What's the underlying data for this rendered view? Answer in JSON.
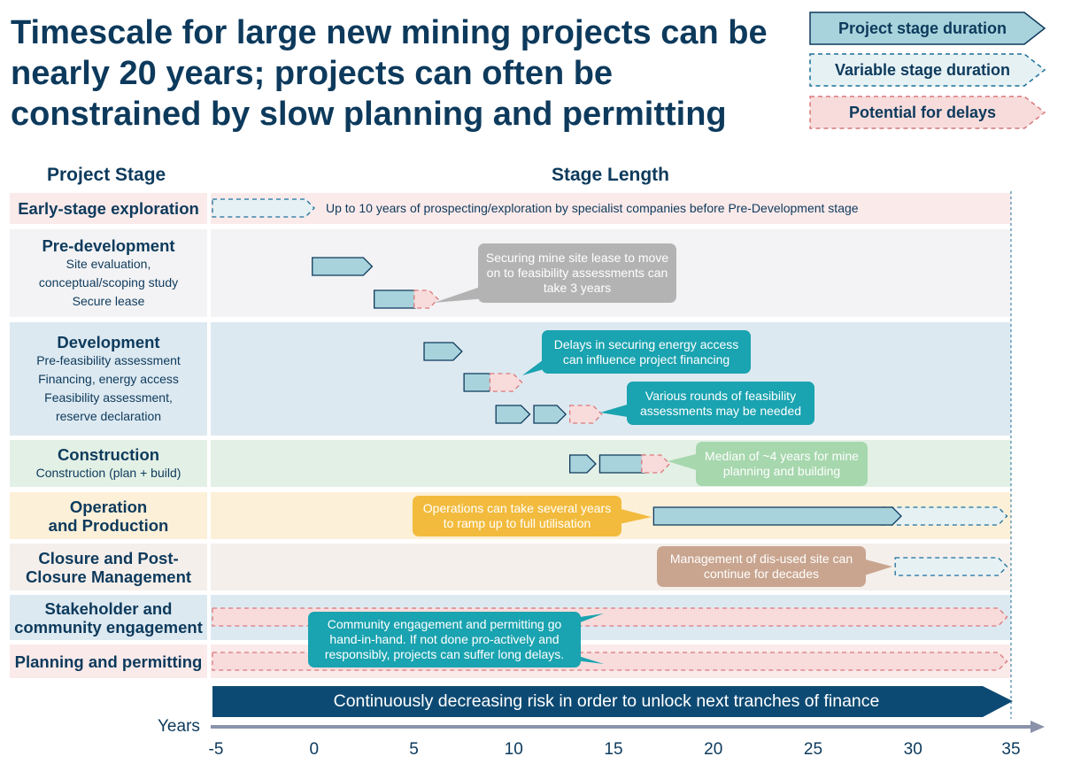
{
  "title": "Timescale for large new mining projects can be nearly 20 years; projects can often be constrained by slow planning and permitting",
  "legend": [
    {
      "label": "Project stage duration",
      "style": "solid",
      "fill": "#a9d3dc",
      "stroke": "#0d3a5c"
    },
    {
      "label": "Variable stage duration",
      "style": "dashed",
      "fill": "#e6f1f4",
      "stroke": "#1a6f9a"
    },
    {
      "label": "Potential for delays",
      "style": "dashed",
      "fill": "#f8dcdc",
      "stroke": "#d9787b"
    }
  ],
  "columns": {
    "stage": "Project Stage",
    "length": "Stage Length"
  },
  "rows": [
    {
      "main": "Early-stage exploration",
      "sub": [],
      "bg": "#fbeaea"
    },
    {
      "main": "Pre-development",
      "sub": [
        "Site evaluation,",
        "conceptual/scoping study",
        "Secure lease"
      ],
      "bg": "#f3f3f5"
    },
    {
      "main": "Development",
      "sub": [
        "Pre-feasibility assessment",
        "Financing, energy access",
        "Feasibility assessment,",
        "reserve declaration"
      ],
      "bg": "#dde9f1"
    },
    {
      "main": "Construction",
      "sub": [
        "Construction (plan + build)"
      ],
      "bg": "#e3f0e5"
    },
    {
      "main": "Operation\nand Production",
      "sub": [],
      "bg": "#fdf0d8"
    },
    {
      "main": "Closure and Post-\nClosure Management",
      "sub": [],
      "bg": "#f5efeb"
    },
    {
      "main": "Stakeholder and\ncommunity engagement",
      "sub": [],
      "bg": "#dde9f1"
    },
    {
      "main": "Planning and permitting",
      "sub": [],
      "bg": "#fbeaea"
    }
  ],
  "exploration_note": "Up to 10 years of prospecting/exploration by specialist companies before Pre-Development stage",
  "bars": [
    {
      "row": 0,
      "type": "variable",
      "start": -5,
      "end": 0.1
    },
    {
      "row": 1,
      "type": "stage",
      "start": 0,
      "end": 3
    },
    {
      "row": 1,
      "type": "stage",
      "start": 3.1,
      "end": 5.6
    },
    {
      "row": 1,
      "type": "delay",
      "start": 5.1,
      "end": 6.3
    },
    {
      "row": 2,
      "type": "stage",
      "start": 5.6,
      "end": 7.5
    },
    {
      "row": 2,
      "type": "stage",
      "start": 7.6,
      "end": 9.3
    },
    {
      "row": 2,
      "type": "delay",
      "start": 8.9,
      "end": 10.5
    },
    {
      "row": 2,
      "type": "stage",
      "start": 9.2,
      "end": 10.9
    },
    {
      "row": 2,
      "type": "stage",
      "start": 11.1,
      "end": 12.7
    },
    {
      "row": 2,
      "type": "delay",
      "start": 12.9,
      "end": 14.5
    },
    {
      "row": 3,
      "type": "stage",
      "start": 12.9,
      "end": 14.2
    },
    {
      "row": 3,
      "type": "stage",
      "start": 14.4,
      "end": 17.1
    },
    {
      "row": 3,
      "type": "delay",
      "start": 16.5,
      "end": 17.9
    },
    {
      "row": 4,
      "type": "variable",
      "start": 28.5,
      "end": 34.8
    },
    {
      "row": 4,
      "type": "stage",
      "start": 17.1,
      "end": 29.5
    },
    {
      "row": 5,
      "type": "variable",
      "start": 29.2,
      "end": 34.8
    },
    {
      "row": 6,
      "type": "delay",
      "start": -5,
      "end": 34.8
    },
    {
      "row": 7,
      "type": "delay",
      "start": -5,
      "end": 34.8
    }
  ],
  "callouts": [
    {
      "text": "Securing mine site lease to move on to feasibility assessments can take 3 years",
      "color": "#b3b3b3"
    },
    {
      "text": "Delays in securing energy access can influence project financing",
      "color": "#1aa3b0"
    },
    {
      "text": "Various rounds of feasibility assessments may be needed",
      "color": "#1aa3b0"
    },
    {
      "text": "Median of ~4 years for mine planning and building",
      "color": "#a6d7ad"
    },
    {
      "text": "Operations can take several years to ramp up to full utilisation",
      "color": "#f2bb3d"
    },
    {
      "text": "Management of dis-used site can continue for decades",
      "color": "#c9a58f"
    },
    {
      "text": "Community engagement and permitting go hand-in-hand. If not done pro-actively and responsibly, projects can suffer long delays.",
      "color": "#1aa3b0"
    }
  ],
  "risk_arrow": {
    "text": "Continuously decreasing risk in order to unlock next tranches of finance",
    "color": "#0d4a73"
  },
  "axis": {
    "label": "Years",
    "ticks": [
      -5,
      0,
      5,
      10,
      15,
      20,
      25,
      30,
      35
    ],
    "min": -5,
    "max": 35
  }
}
